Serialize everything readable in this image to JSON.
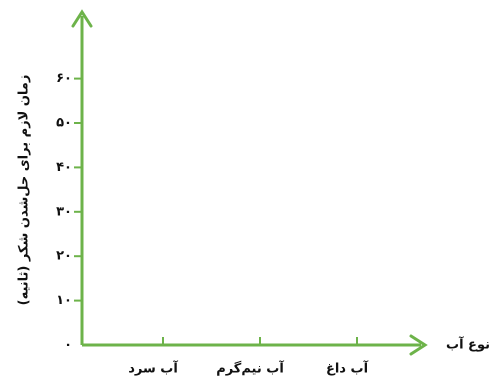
{
  "chart_data": {
    "type": "bar",
    "y_label": "زمان لازم برای حل‌شدن شکر (ثانیه)",
    "x_label": "نوع آب",
    "categories": [
      "آب سرد",
      "آب نیم‌گرم",
      "آب داغ"
    ],
    "ylim": [
      0,
      75
    ],
    "yticks": [
      {
        "value": 0,
        "label": "۰"
      },
      {
        "value": 10,
        "label": "۱۰"
      },
      {
        "value": 20,
        "label": "۲۰"
      },
      {
        "value": 30,
        "label": "۳۰"
      },
      {
        "value": 40,
        "label": "۴۰"
      },
      {
        "value": 50,
        "label": "۵۰"
      },
      {
        "value": 60,
        "label": "۶۰"
      }
    ],
    "axis_color": "#6db34a"
  }
}
